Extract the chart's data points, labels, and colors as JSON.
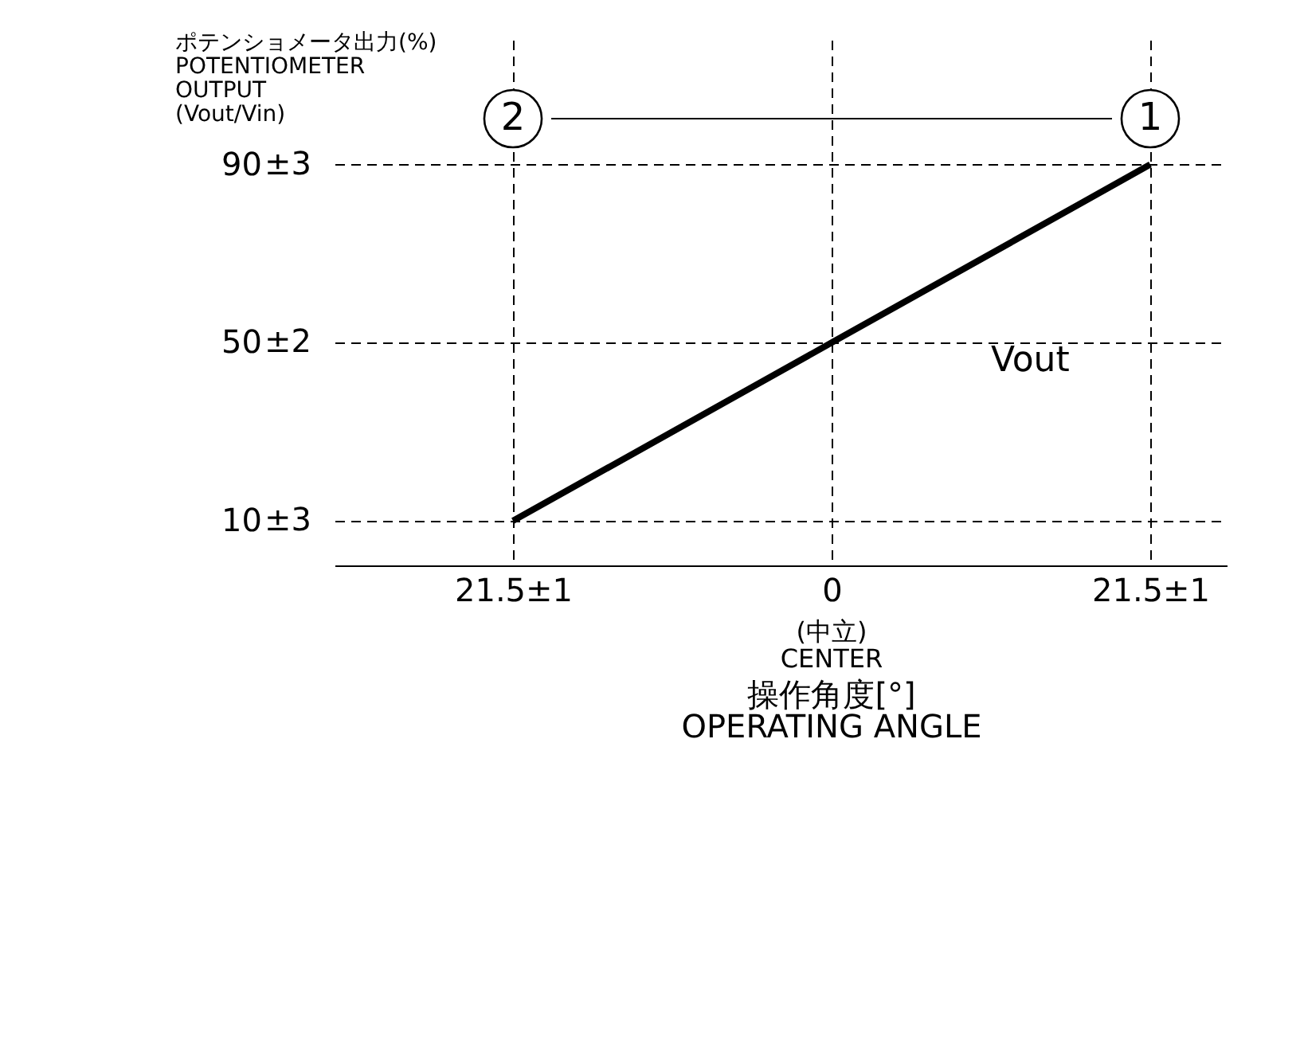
{
  "chart_data": {
    "type": "line",
    "xlabel": "操作角度[°]\nOPERATING ANGLE",
    "categories": [
      "21.5±1",
      "0",
      "21.5±1"
    ],
    "series": [
      {
        "color": "#000000",
        "values": [
          10,
          50,
          90
        ]
      }
    ],
    "ylim": [
      0,
      118
    ],
    "yticks": [
      10,
      50,
      90
    ],
    "annotations": [
      "ポテンショメータ出力(%)\nPOTENTIOMETER\nOUTPUT\n (Vout/Vin)",
      "(中立)\nCENTER",
      "Vout",
      "2",
      "1",
      "±3",
      "±2",
      "±3"
    ],
    "grid": true,
    "marker": "none",
    "line_style": "solid"
  }
}
